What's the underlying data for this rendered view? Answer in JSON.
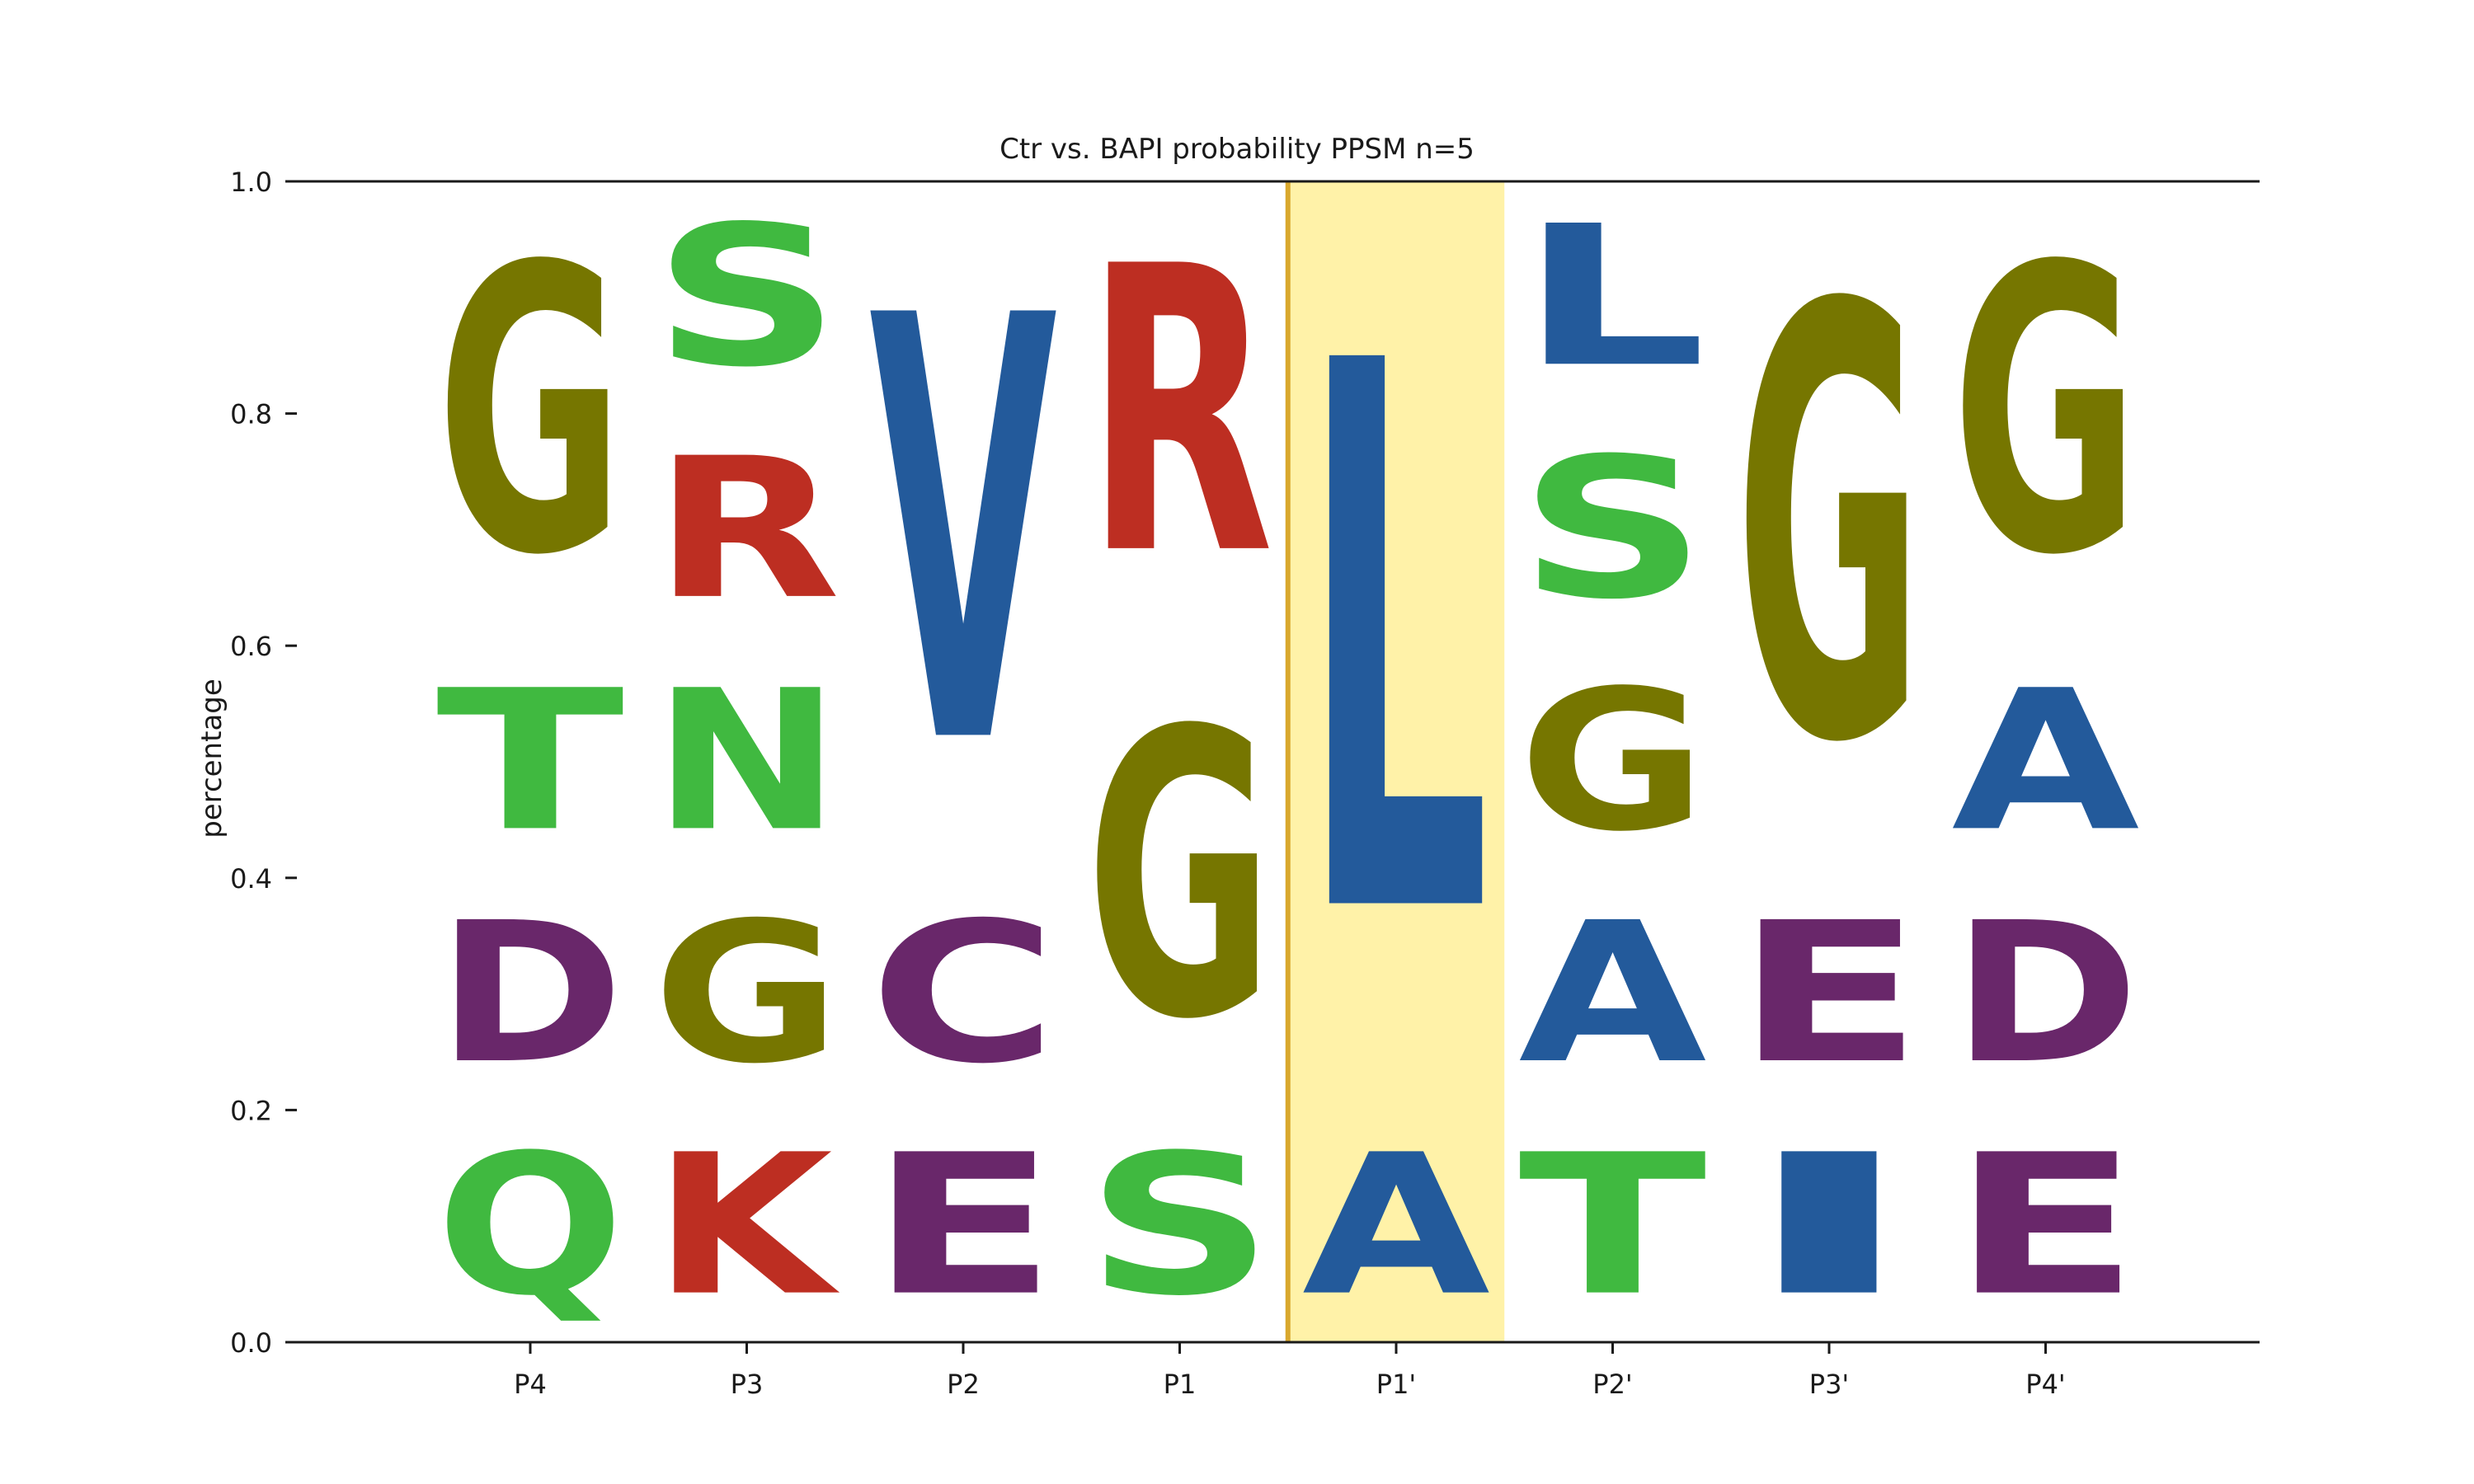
{
  "chart_data": {
    "type": "sequence-logo",
    "title": "Ctr vs. BAPI probability PPSM n=5",
    "xlabel": "",
    "ylabel": "percentage",
    "ylim": [
      0,
      1
    ],
    "yticks": [
      "0.0",
      "0.2",
      "0.4",
      "0.6",
      "0.8",
      "1.0"
    ],
    "categories": [
      "P4",
      "P3",
      "P2",
      "P1",
      "P1'",
      "P2'",
      "P3'",
      "P4'"
    ],
    "highlight": {
      "category": "P1'",
      "color": "#fff2a8",
      "divider_color": "#d9a82e"
    },
    "colors": {
      "G": "#767600",
      "S": "#40b940",
      "T": "#40b940",
      "N": "#40b940",
      "Q": "#40b940",
      "R": "#bd2e22",
      "K": "#bd2e22",
      "V": "#235a9b",
      "L": "#235a9b",
      "A": "#235a9b",
      "I": "#235a9b",
      "D": "#69276a",
      "E": "#69276a",
      "C": "#69276a"
    },
    "stacks": [
      {
        "position": "P4",
        "letters": [
          {
            "letter": "Q",
            "from": 0.0,
            "to": 0.2
          },
          {
            "letter": "D",
            "from": 0.2,
            "to": 0.4
          },
          {
            "letter": "T",
            "from": 0.4,
            "to": 0.6
          },
          {
            "letter": "G",
            "from": 0.6,
            "to": 1.0
          }
        ]
      },
      {
        "position": "P3",
        "letters": [
          {
            "letter": "K",
            "from": 0.0,
            "to": 0.2
          },
          {
            "letter": "G",
            "from": 0.2,
            "to": 0.4
          },
          {
            "letter": "N",
            "from": 0.4,
            "to": 0.6
          },
          {
            "letter": "R",
            "from": 0.6,
            "to": 0.8
          },
          {
            "letter": "S",
            "from": 0.8,
            "to": 1.0
          }
        ]
      },
      {
        "position": "P2",
        "letters": [
          {
            "letter": "E",
            "from": 0.0,
            "to": 0.2
          },
          {
            "letter": "C",
            "from": 0.2,
            "to": 0.4
          },
          {
            "letter": "V",
            "from": 0.4,
            "to": 0.99
          }
        ]
      },
      {
        "position": "P1",
        "letters": [
          {
            "letter": "S",
            "from": 0.0,
            "to": 0.2
          },
          {
            "letter": "G",
            "from": 0.2,
            "to": 0.6
          },
          {
            "letter": "R",
            "from": 0.6,
            "to": 1.0
          }
        ]
      },
      {
        "position": "P1'",
        "letters": [
          {
            "letter": "A",
            "from": 0.0,
            "to": 0.2
          },
          {
            "letter": "L",
            "from": 0.22,
            "to": 0.98
          }
        ]
      },
      {
        "position": "P2'",
        "letters": [
          {
            "letter": "T",
            "from": 0.0,
            "to": 0.2
          },
          {
            "letter": "A",
            "from": 0.2,
            "to": 0.4
          },
          {
            "letter": "G",
            "from": 0.4,
            "to": 0.6
          },
          {
            "letter": "S",
            "from": 0.6,
            "to": 0.8
          },
          {
            "letter": "L",
            "from": 0.8,
            "to": 1.0
          }
        ]
      },
      {
        "position": "P3'",
        "letters": [
          {
            "letter": "I",
            "from": 0.0,
            "to": 0.2
          },
          {
            "letter": "E",
            "from": 0.2,
            "to": 0.4
          },
          {
            "letter": "G",
            "from": 0.4,
            "to": 1.0
          }
        ]
      },
      {
        "position": "P4'",
        "letters": [
          {
            "letter": "E",
            "from": 0.0,
            "to": 0.2
          },
          {
            "letter": "D",
            "from": 0.2,
            "to": 0.4
          },
          {
            "letter": "A",
            "from": 0.4,
            "to": 0.6
          },
          {
            "letter": "G",
            "from": 0.6,
            "to": 1.0
          }
        ]
      }
    ]
  }
}
